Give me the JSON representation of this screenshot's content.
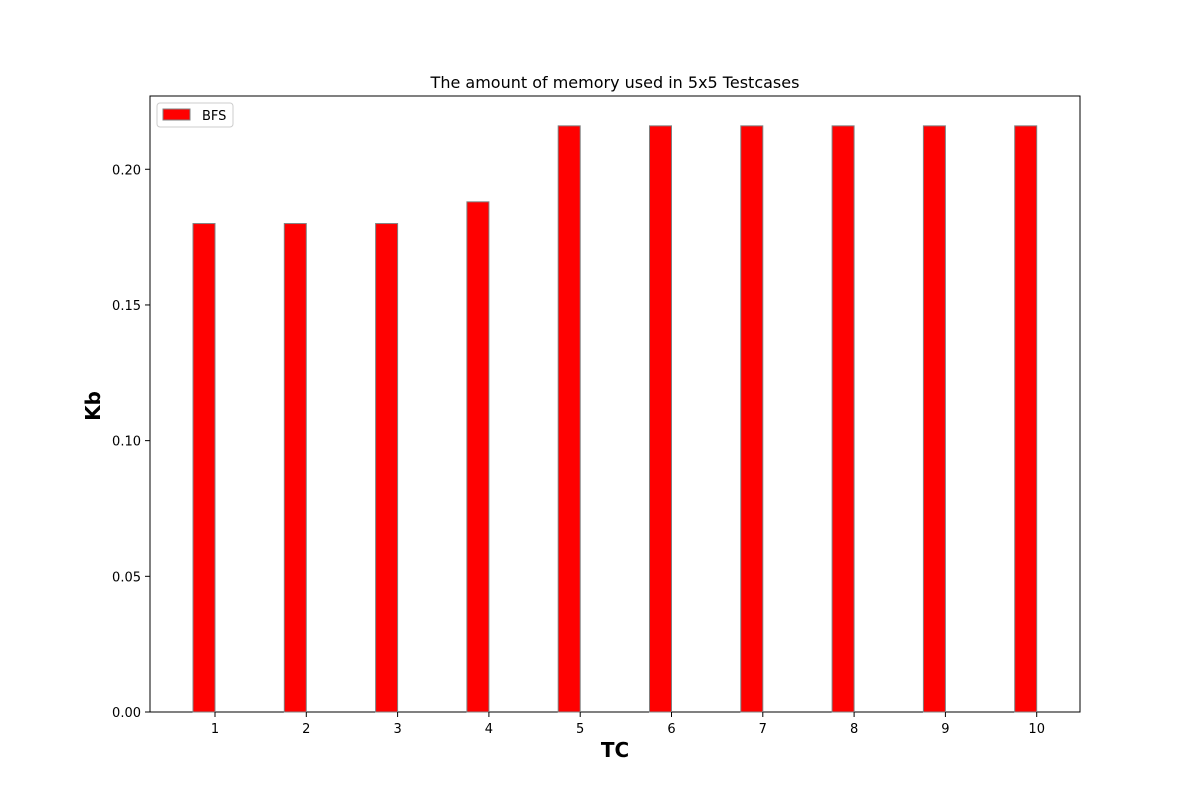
{
  "chart_data": {
    "type": "bar",
    "title": "The amount of memory used in 5x5 Testcases",
    "xlabel": "TC",
    "ylabel": "Kb",
    "categories": [
      "1",
      "2",
      "3",
      "4",
      "5",
      "6",
      "7",
      "8",
      "9",
      "10"
    ],
    "series": [
      {
        "name": "BFS",
        "color": "#ff0000",
        "values": [
          0.18,
          0.18,
          0.18,
          0.188,
          0.216,
          0.216,
          0.216,
          0.216,
          0.216,
          0.216
        ]
      }
    ],
    "ylim": [
      0,
      0.227
    ],
    "yticks": [
      "0.00",
      "0.05",
      "0.10",
      "0.15",
      "0.20"
    ],
    "grid": false,
    "legend_position": "top-left",
    "bar_edge_color": "#808080"
  }
}
